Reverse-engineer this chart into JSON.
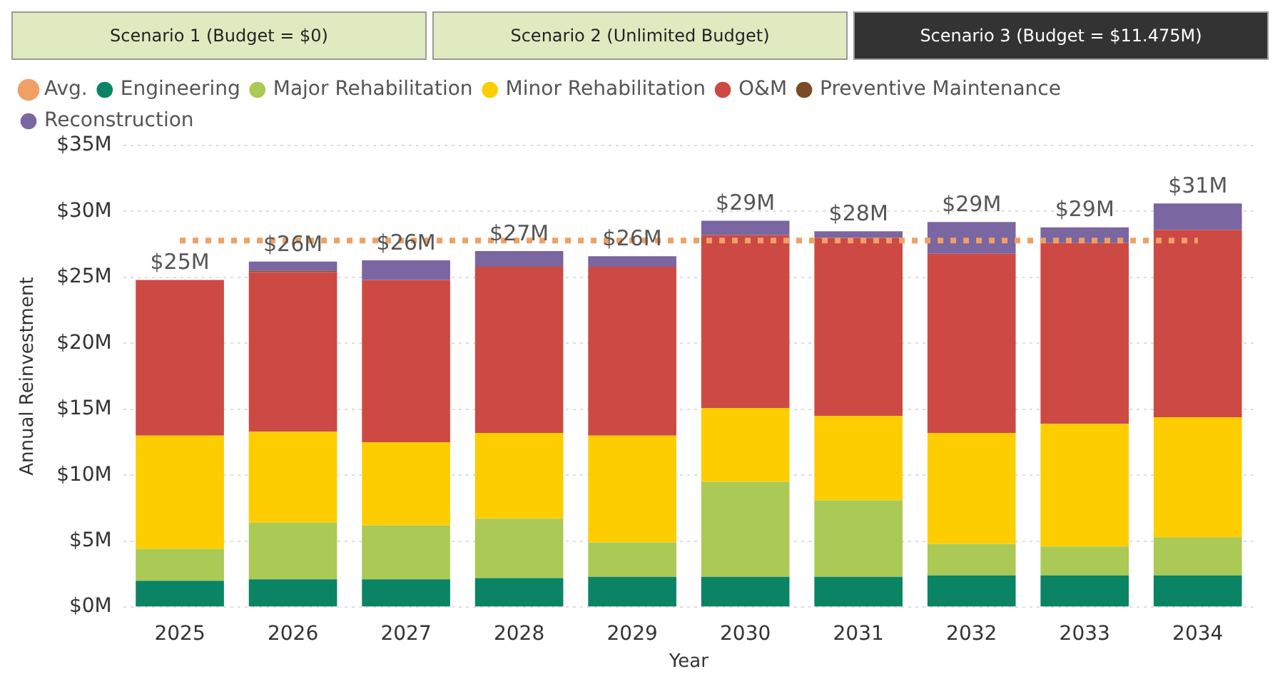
{
  "chart_data": {
    "type": "bar",
    "stacked": true,
    "xlabel": "Year",
    "ylabel": "Annual Reinvestment",
    "annotations": [
      "Scenario 1 (Budget = $0)",
      "Scenario 2 (Unlimited Budget)",
      "Scenario 3 (Budget = $11.475M)"
    ],
    "categories": [
      "2025",
      "2026",
      "2027",
      "2028",
      "2029",
      "2030",
      "2031",
      "2032",
      "2033",
      "2034"
    ],
    "series": [
      {
        "name": "Engineering",
        "color": "#0a8464",
        "values": [
          2.0,
          2.1,
          2.1,
          2.2,
          2.3,
          2.3,
          2.3,
          2.4,
          2.4,
          2.4
        ]
      },
      {
        "name": "Major Rehabilitation",
        "color": "#aac955",
        "values": [
          2.4,
          4.3,
          4.1,
          4.5,
          2.6,
          7.2,
          5.8,
          2.4,
          2.2,
          2.9
        ]
      },
      {
        "name": "Minor Rehabilitation",
        "color": "#fdcd00",
        "values": [
          8.6,
          6.9,
          6.3,
          6.5,
          8.1,
          5.6,
          6.4,
          8.4,
          9.3,
          9.1
        ]
      },
      {
        "name": "O&M",
        "color": "#cc4a43",
        "values": [
          11.8,
          12.1,
          12.3,
          12.6,
          12.8,
          13.1,
          13.5,
          13.6,
          13.7,
          14.2
        ]
      },
      {
        "name": "Preventive Maintenance",
        "color": "#7b4b25",
        "values": [
          0,
          0.1,
          0,
          0,
          0,
          0,
          0,
          0,
          0,
          0
        ]
      },
      {
        "name": "Reconstruction",
        "color": "#7a66a0",
        "values": [
          0,
          0.7,
          1.5,
          1.2,
          0.8,
          1.1,
          0.5,
          2.4,
          1.2,
          2.0
        ]
      },
      {
        "name": "Avg.",
        "type": "line",
        "line_style": "dotted",
        "marker": "none",
        "color": "#f0a064",
        "values": [
          27.8,
          27.8,
          27.8,
          27.8,
          27.8,
          27.8,
          27.8,
          27.8,
          27.8,
          27.8
        ]
      }
    ],
    "totals": [
      "$25M",
      "$26M",
      "$26M",
      "$27M",
      "$26M",
      "$29M",
      "$28M",
      "$29M",
      "$29M",
      "$31M"
    ],
    "ylim": [
      0,
      35
    ],
    "yticks": [
      {
        "value": 0,
        "label": "$0M"
      },
      {
        "value": 5,
        "label": "$5M"
      },
      {
        "value": 10,
        "label": "$10M"
      },
      {
        "value": 15,
        "label": "$15M"
      },
      {
        "value": 20,
        "label": "$20M"
      },
      {
        "value": 25,
        "label": "$25M"
      },
      {
        "value": 30,
        "label": "$30M"
      },
      {
        "value": 35,
        "label": "$35M"
      }
    ],
    "grid": "y",
    "legend": "top left"
  }
}
